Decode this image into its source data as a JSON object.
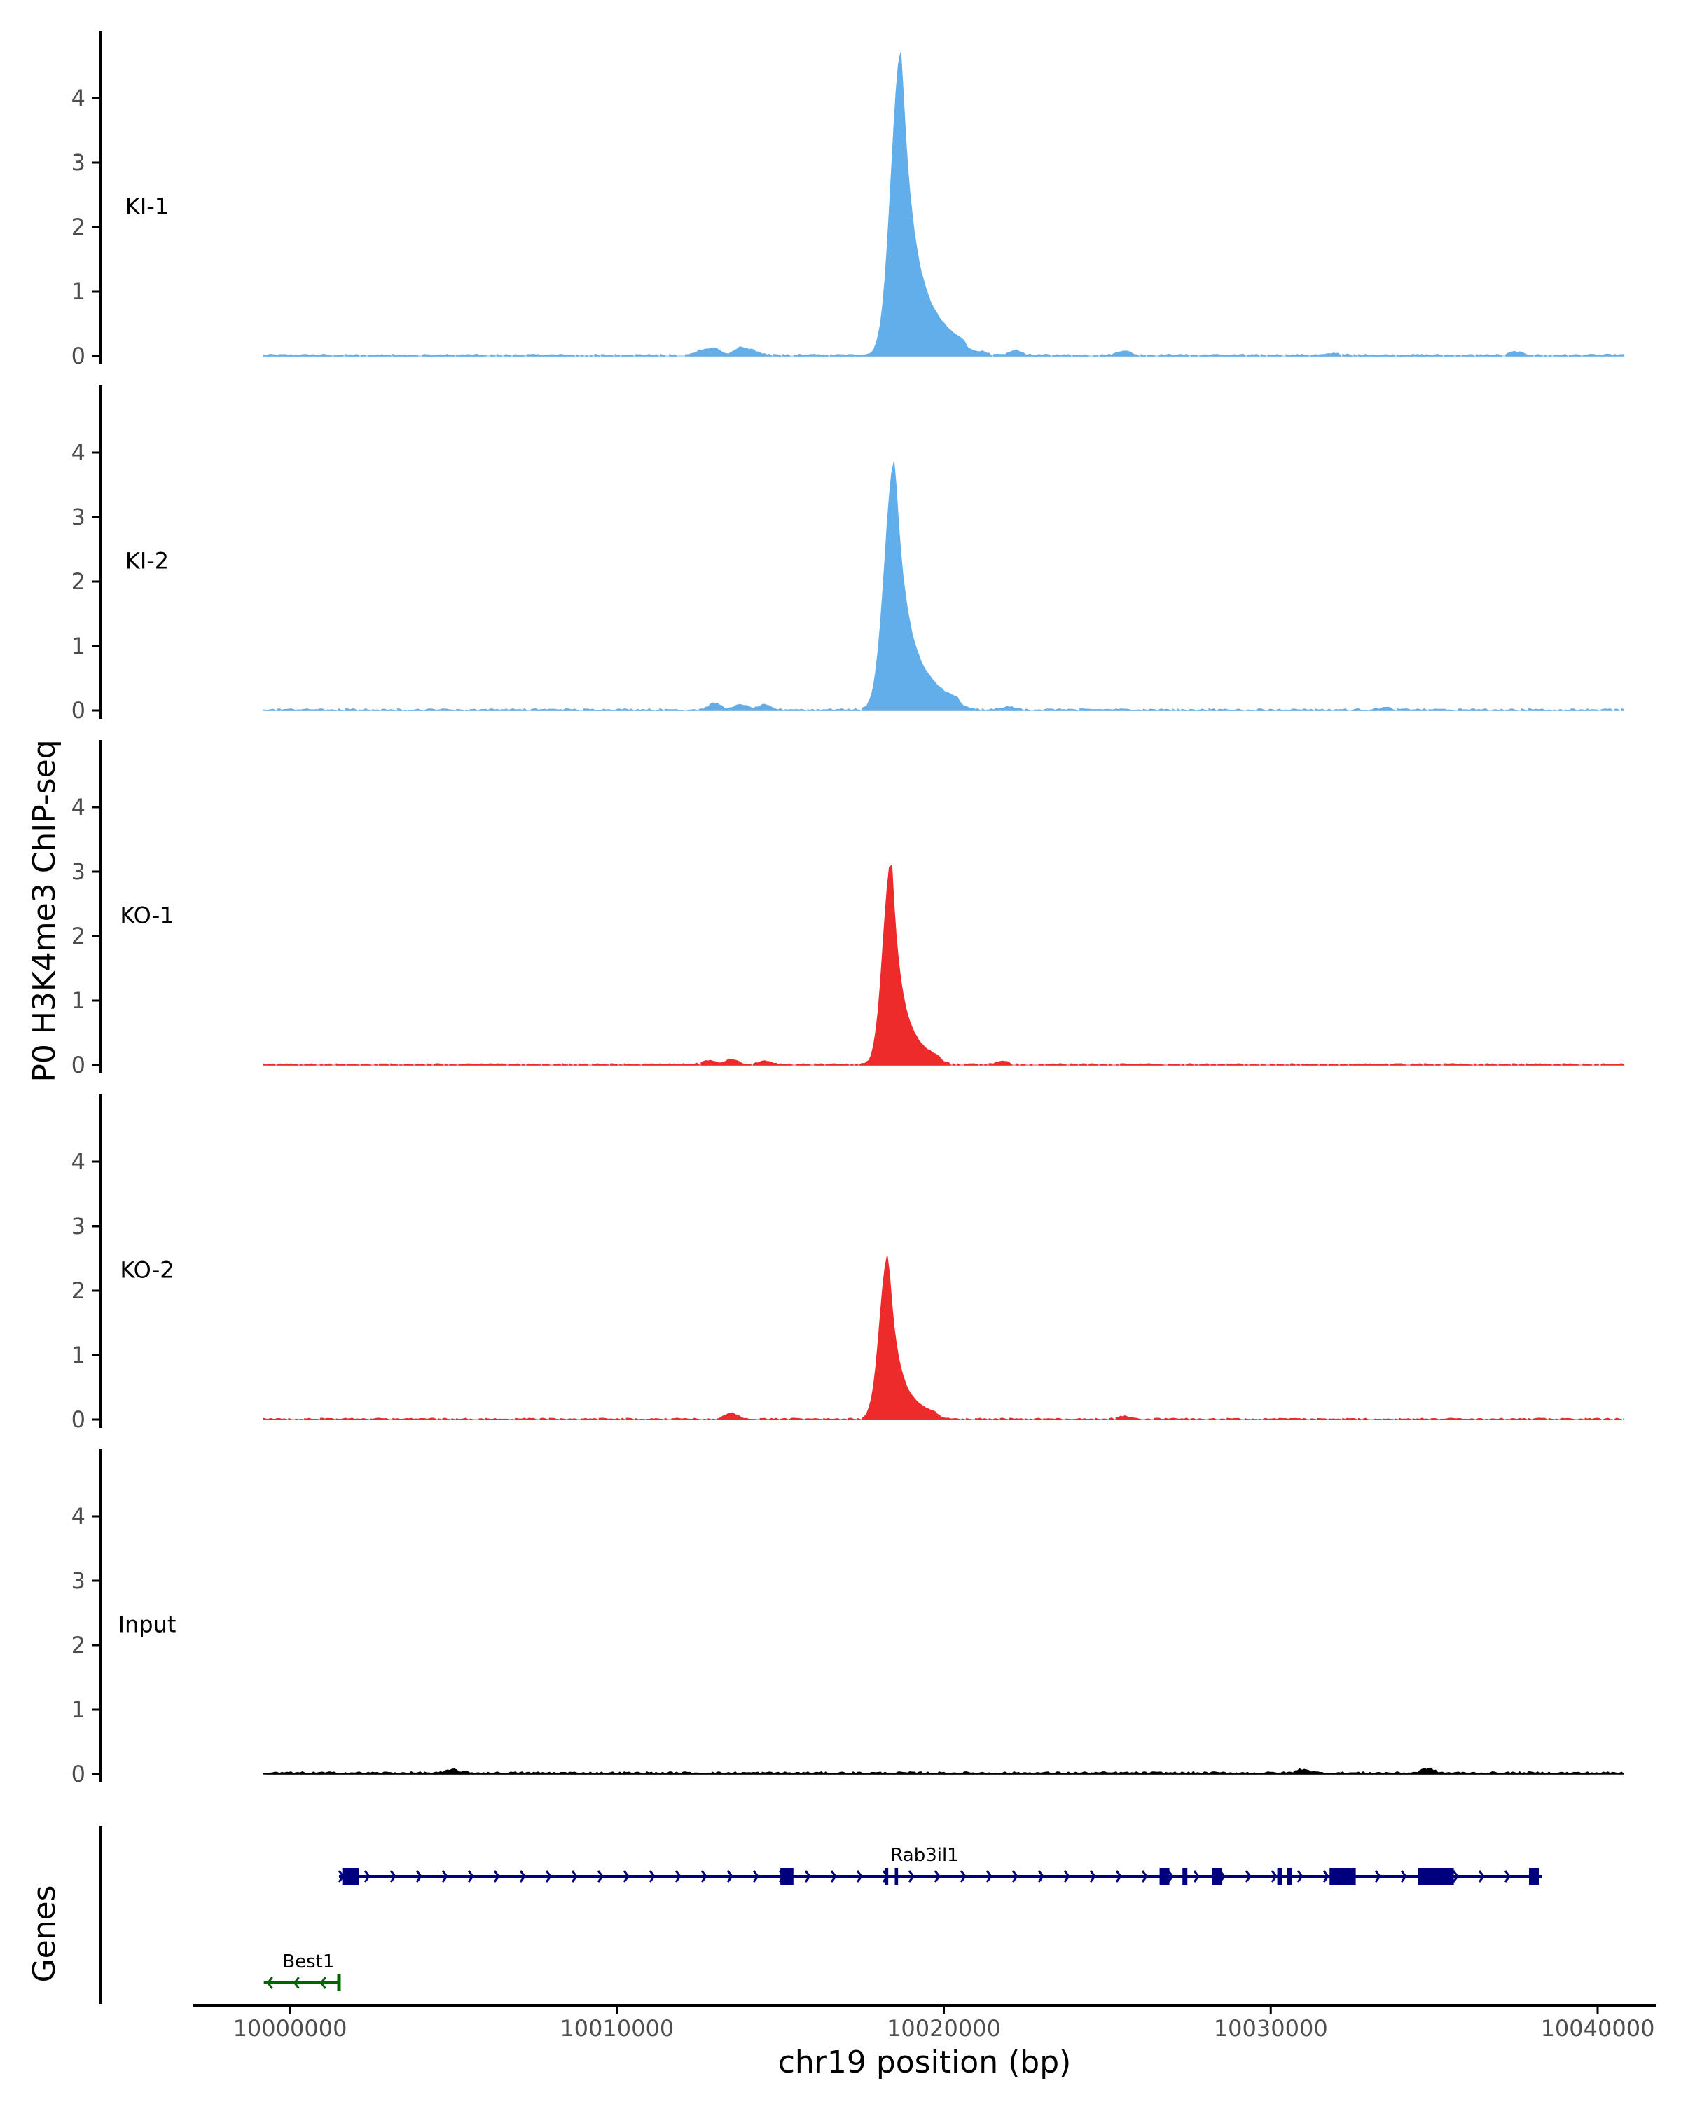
{
  "chart_data": {
    "type": "area",
    "title": "",
    "ylabel": "P0 H3K4me3 ChIP-seq",
    "xlabel": "chr19 position (bp)",
    "xlim": [
      9997000,
      10043000
    ],
    "xticks": [
      10000000,
      10010000,
      10020000,
      10030000,
      10040000
    ],
    "xtick_labels": [
      "10000000",
      "10010000",
      "10020000",
      "10030000",
      "10040000"
    ],
    "ylim": [
      0,
      5
    ],
    "yticks": [
      0,
      1,
      2,
      3,
      4
    ],
    "ytick_labels": [
      "0",
      "1",
      "2",
      "3",
      "4"
    ],
    "colors": {
      "KI": "#62aeea",
      "KO": "#ee2b2b",
      "Input": "#000000",
      "gene_plus": "#00007f",
      "gene_minus": "#006400",
      "axis": "#000000",
      "tick_text": "#4d4d4d"
    },
    "tracks": [
      {
        "name": "KI-1",
        "color": "#62aeea",
        "peak": {
          "center": 10018700,
          "height": 4.7,
          "rise": 300,
          "shoulder": 0.42,
          "shoulder_decay": 900,
          "tail": 1200
        },
        "bumps": [
          [
            10012600,
            0.08
          ],
          [
            10013000,
            0.1
          ],
          [
            10013800,
            0.12
          ],
          [
            10014200,
            0.06
          ],
          [
            10021100,
            0.05
          ],
          [
            10022200,
            0.07
          ],
          [
            10025500,
            0.07
          ],
          [
            10032000,
            0.03
          ],
          [
            10037500,
            0.05
          ]
        ],
        "noise": 0.025,
        "gap_prob": 0.12
      },
      {
        "name": "KI-2",
        "color": "#62aeea",
        "peak": {
          "center": 10018500,
          "height": 3.85,
          "rise": 300,
          "shoulder": 0.4,
          "shoulder_decay": 900,
          "tail": 1200
        },
        "bumps": [
          [
            10013000,
            0.1
          ],
          [
            10013800,
            0.08
          ],
          [
            10014500,
            0.07
          ],
          [
            10022000,
            0.04
          ],
          [
            10033500,
            0.03
          ]
        ],
        "noise": 0.025,
        "gap_prob": 0.12
      },
      {
        "name": "KO-1",
        "color": "#ee2b2b",
        "peak": {
          "center": 10018400,
          "height": 3.15,
          "rise": 250,
          "shoulder": 0.34,
          "shoulder_decay": 700,
          "tail": 900
        },
        "bumps": [
          [
            10012800,
            0.06
          ],
          [
            10013500,
            0.08
          ],
          [
            10014500,
            0.05
          ],
          [
            10021800,
            0.05
          ]
        ],
        "noise": 0.02,
        "gap_prob": 0.2
      },
      {
        "name": "KO-2",
        "color": "#ee2b2b",
        "peak": {
          "center": 10018300,
          "height": 2.55,
          "rise": 250,
          "shoulder": 0.32,
          "shoulder_decay": 700,
          "tail": 900
        },
        "bumps": [
          [
            10013500,
            0.09
          ],
          [
            10025500,
            0.04
          ]
        ],
        "noise": 0.02,
        "gap_prob": 0.2
      },
      {
        "name": "Input",
        "color": "#000000",
        "peak": null,
        "bumps": [
          [
            10005000,
            0.05
          ],
          [
            10034800,
            0.07
          ],
          [
            10031000,
            0.06
          ]
        ],
        "noise": 0.035,
        "gap_prob": 0.0
      }
    ],
    "genes_label": "Genes",
    "genes": [
      {
        "name": "Rab3il1",
        "start": 10001500,
        "end": 10038300,
        "strand": "+",
        "color": "#00007f",
        "exons": [
          [
            10001600,
            10002100
          ],
          [
            10015000,
            10015400
          ],
          [
            10018200,
            10018300
          ],
          [
            10018500,
            10018600
          ],
          [
            10026600,
            10026900
          ],
          [
            10027300,
            10027450
          ],
          [
            10028200,
            10028500
          ],
          [
            10030200,
            10030350
          ],
          [
            10030500,
            10030650
          ],
          [
            10031800,
            10032600
          ],
          [
            10034500,
            10035600
          ],
          [
            10037900,
            10038200
          ]
        ]
      },
      {
        "name": "Best1",
        "start": 9999200,
        "end": 10001500,
        "strand": "-",
        "color": "#006400",
        "exons": []
      }
    ]
  }
}
